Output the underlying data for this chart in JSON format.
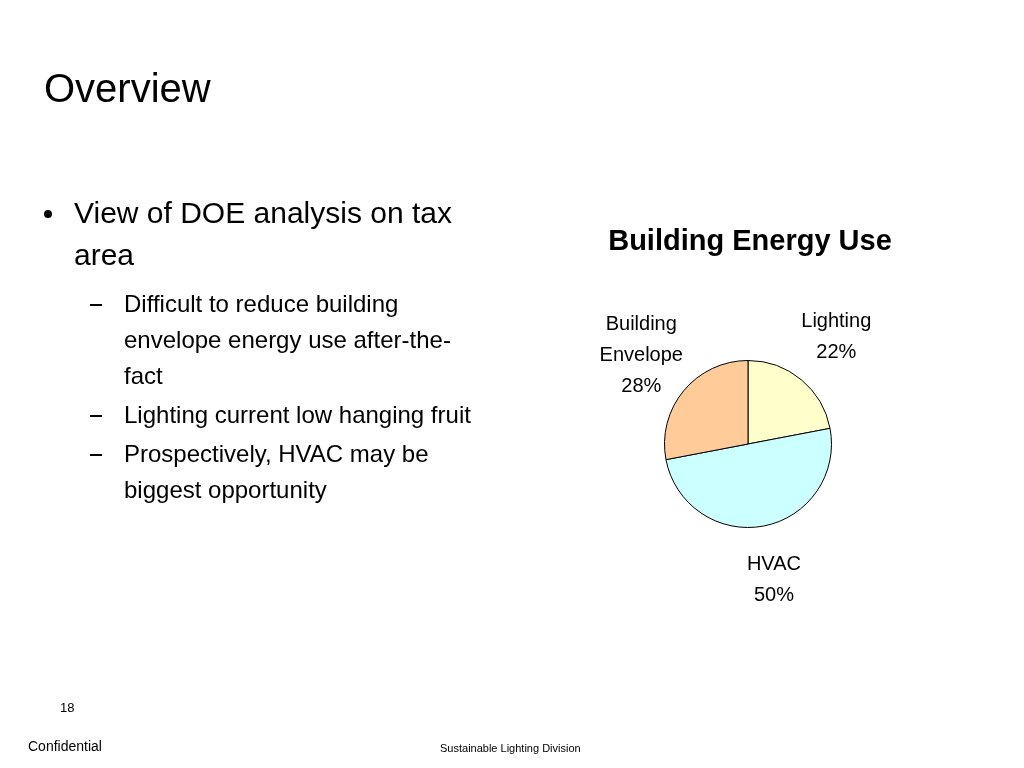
{
  "chart_data": {
    "type": "pie",
    "title": "Building Energy Use",
    "categories": [
      "Lighting",
      "HVAC",
      "Building Envelope"
    ],
    "values": [
      22,
      50,
      28
    ],
    "colors": [
      "#ffffcc",
      "#ccffff",
      "#ffcc99"
    ],
    "value_labels": [
      "22%",
      "50%",
      "28%"
    ],
    "legend": false,
    "annotations": [
      "Overview",
      "View of DOE analysis on tax area",
      "Difficult to reduce building envelope energy use after-the-fact",
      "Lighting current low hanging fruit",
      "Prospectively, HVAC may be biggest opportunity",
      "18",
      "Confidential",
      "Sustainable Lighting Division"
    ]
  }
}
